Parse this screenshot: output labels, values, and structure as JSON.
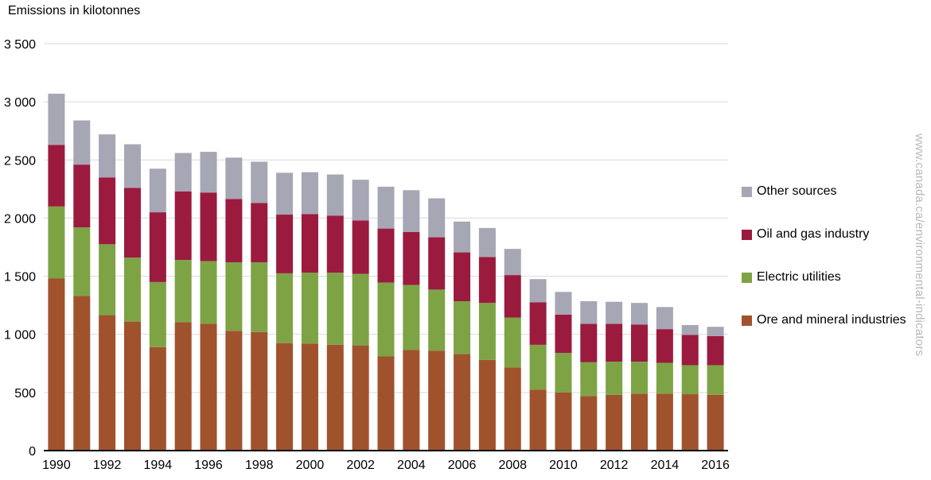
{
  "chart_data": {
    "type": "bar",
    "stacked": true,
    "ylabel": "Emissions in kilotonnes",
    "ylim": [
      0,
      3500
    ],
    "yticks": [
      0,
      500,
      1000,
      1500,
      2000,
      2500,
      3000,
      3500
    ],
    "ytick_labels": [
      "0",
      "500",
      "1 000",
      "1 500",
      "2 000",
      "2 500",
      "3 000",
      "3 500"
    ],
    "categories": [
      "1990",
      "1991",
      "1992",
      "1993",
      "1994",
      "1995",
      "1996",
      "1997",
      "1998",
      "1999",
      "2000",
      "2001",
      "2002",
      "2003",
      "2004",
      "2005",
      "2006",
      "2007",
      "2008",
      "2009",
      "2010",
      "2011",
      "2012",
      "2013",
      "2014",
      "2015",
      "2016"
    ],
    "xtick_labels": [
      "1990",
      "1992",
      "1994",
      "1996",
      "1998",
      "2000",
      "2002",
      "2004",
      "2006",
      "2008",
      "2010",
      "2012",
      "2014",
      "2016"
    ],
    "grid": true,
    "legend_position": "right",
    "series": [
      {
        "name": "Ore and mineral industries",
        "color": "#a0522d",
        "values": [
          1480,
          1330,
          1165,
          1110,
          890,
          1105,
          1090,
          1030,
          1020,
          925,
          920,
          910,
          905,
          810,
          865,
          860,
          830,
          780,
          715,
          525,
          500,
          470,
          480,
          490,
          490,
          485,
          480
        ]
      },
      {
        "name": "Electric utilities",
        "color": "#7ea345",
        "values": [
          620,
          590,
          610,
          550,
          560,
          535,
          540,
          590,
          600,
          600,
          610,
          620,
          615,
          635,
          560,
          525,
          455,
          490,
          430,
          385,
          340,
          290,
          285,
          275,
          265,
          250,
          255
        ]
      },
      {
        "name": "Oil and gas industry",
        "color": "#9b1b3f",
        "values": [
          530,
          540,
          575,
          600,
          600,
          590,
          590,
          545,
          510,
          505,
          505,
          490,
          460,
          465,
          455,
          450,
          420,
          395,
          365,
          365,
          330,
          330,
          325,
          320,
          290,
          260,
          250
        ]
      },
      {
        "name": "Other sources",
        "color": "#a7a6b4",
        "values": [
          440,
          380,
          370,
          375,
          375,
          330,
          350,
          355,
          355,
          360,
          360,
          355,
          350,
          360,
          360,
          335,
          265,
          250,
          225,
          200,
          195,
          195,
          190,
          185,
          190,
          85,
          80
        ]
      }
    ]
  },
  "watermark": "www.canada.ca/environmental-indicators"
}
